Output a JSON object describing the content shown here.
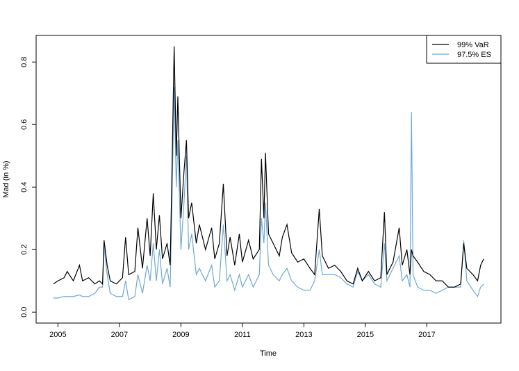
{
  "chart_data": {
    "type": "line",
    "x_label": "Time",
    "y_label": "Mad (in %)",
    "x": [
      2004.85,
      2005.0,
      2005.2,
      2005.3,
      2005.5,
      2005.7,
      2005.8,
      2006.0,
      2006.2,
      2006.35,
      2006.45,
      2006.5,
      2006.6,
      2006.7,
      2006.9,
      2007.1,
      2007.2,
      2007.3,
      2007.5,
      2007.6,
      2007.75,
      2007.9,
      2008.0,
      2008.1,
      2008.2,
      2008.3,
      2008.4,
      2008.55,
      2008.65,
      2008.7,
      2008.78,
      2008.85,
      2008.9,
      2009.0,
      2009.1,
      2009.18,
      2009.25,
      2009.35,
      2009.5,
      2009.6,
      2009.8,
      2010.0,
      2010.1,
      2010.25,
      2010.38,
      2010.5,
      2010.6,
      2010.75,
      2010.9,
      2011.0,
      2011.2,
      2011.35,
      2011.55,
      2011.62,
      2011.7,
      2011.75,
      2011.85,
      2012.0,
      2012.2,
      2012.3,
      2012.45,
      2012.6,
      2012.8,
      2013.0,
      2013.2,
      2013.35,
      2013.5,
      2013.6,
      2013.8,
      2014.0,
      2014.2,
      2014.4,
      2014.6,
      2014.75,
      2014.9,
      2015.1,
      2015.3,
      2015.5,
      2015.62,
      2015.7,
      2015.9,
      2016.1,
      2016.2,
      2016.35,
      2016.45,
      2016.5,
      2016.55,
      2016.7,
      2016.9,
      2017.1,
      2017.3,
      2017.5,
      2017.7,
      2017.9,
      2018.1,
      2018.2,
      2018.3,
      2018.5,
      2018.65,
      2018.75,
      2018.85
    ],
    "series": [
      {
        "name": "99% VaR",
        "color": "#000000",
        "values": [
          0.09,
          0.1,
          0.11,
          0.13,
          0.1,
          0.15,
          0.1,
          0.11,
          0.09,
          0.1,
          0.09,
          0.23,
          0.15,
          0.1,
          0.09,
          0.11,
          0.24,
          0.12,
          0.13,
          0.27,
          0.14,
          0.3,
          0.18,
          0.38,
          0.2,
          0.31,
          0.17,
          0.22,
          0.15,
          0.4,
          0.85,
          0.5,
          0.69,
          0.3,
          0.45,
          0.55,
          0.3,
          0.35,
          0.22,
          0.28,
          0.2,
          0.27,
          0.17,
          0.22,
          0.41,
          0.18,
          0.24,
          0.15,
          0.25,
          0.16,
          0.23,
          0.17,
          0.2,
          0.49,
          0.3,
          0.51,
          0.25,
          0.22,
          0.18,
          0.24,
          0.28,
          0.19,
          0.16,
          0.17,
          0.14,
          0.12,
          0.33,
          0.18,
          0.14,
          0.15,
          0.13,
          0.1,
          0.09,
          0.14,
          0.1,
          0.13,
          0.1,
          0.11,
          0.32,
          0.12,
          0.16,
          0.27,
          0.15,
          0.2,
          0.12,
          0.2,
          0.18,
          0.16,
          0.13,
          0.12,
          0.1,
          0.1,
          0.08,
          0.08,
          0.09,
          0.22,
          0.14,
          0.12,
          0.1,
          0.15,
          0.17
        ]
      },
      {
        "name": "97.5% ES",
        "color": "#6fa8d1",
        "values": [
          0.045,
          0.045,
          0.05,
          0.05,
          0.05,
          0.055,
          0.05,
          0.05,
          0.06,
          0.08,
          0.08,
          0.21,
          0.12,
          0.06,
          0.05,
          0.05,
          0.1,
          0.04,
          0.05,
          0.12,
          0.06,
          0.15,
          0.1,
          0.22,
          0.1,
          0.2,
          0.09,
          0.14,
          0.08,
          0.3,
          0.72,
          0.4,
          0.55,
          0.2,
          0.35,
          0.5,
          0.2,
          0.25,
          0.12,
          0.14,
          0.1,
          0.15,
          0.08,
          0.1,
          0.28,
          0.1,
          0.12,
          0.07,
          0.12,
          0.08,
          0.12,
          0.08,
          0.12,
          0.3,
          0.22,
          0.35,
          0.15,
          0.12,
          0.1,
          0.12,
          0.14,
          0.1,
          0.08,
          0.07,
          0.07,
          0.1,
          0.2,
          0.12,
          0.12,
          0.12,
          0.11,
          0.09,
          0.08,
          0.13,
          0.1,
          0.12,
          0.09,
          0.08,
          0.22,
          0.1,
          0.14,
          0.18,
          0.1,
          0.12,
          0.08,
          0.64,
          0.12,
          0.08,
          0.07,
          0.07,
          0.06,
          0.07,
          0.08,
          0.08,
          0.08,
          0.23,
          0.1,
          0.07,
          0.05,
          0.08,
          0.09
        ]
      }
    ],
    "xlim": [
      2004.29,
      2019.41
    ],
    "ylim": [
      -0.035,
      0.885
    ],
    "xticks": [
      2005,
      2007,
      2009,
      2011,
      2013,
      2015,
      2017
    ],
    "yticks": [
      {
        "value": 0,
        "label": "0.0"
      },
      0.2,
      0.4,
      0.6,
      0.8
    ],
    "legend": "top-right"
  }
}
